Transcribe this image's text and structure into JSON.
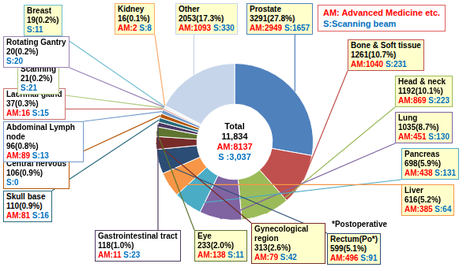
{
  "chart_data": {
    "type": "doughnut",
    "categories": [
      "Prostate",
      "Bone & Soft tissue",
      "Head & neck",
      "Lung",
      "Pancreas",
      "Liver",
      "Rectum(Po*)",
      "Gynecological region",
      "Eye",
      "Gastrointestinal tract",
      "Skull base",
      "Central nervous",
      "Abdominal Lymph node",
      "Lacrimal gland",
      "Scanning",
      "Rotating Gantry",
      "Breast",
      "Kidney",
      "Other"
    ],
    "values": [
      3291,
      1261,
      1192,
      1035,
      698,
      616,
      599,
      313,
      233,
      118,
      110,
      106,
      96,
      37,
      21,
      20,
      19,
      16,
      2053
    ],
    "value_labels": [
      "3291(27.8%)",
      "1261(10.7%)",
      "1192(10.1%)",
      "1035(8.7%)",
      "698(5.9%)",
      "616(5.2%)",
      "599(5.1%)",
      "313(2.6%)",
      "233(2.0%)",
      "118(1.0%)",
      "110(0.9%)",
      "106(0.9%)",
      "96(0.8%)",
      "37(0.3%)",
      "21(0.2%)",
      "20(0.2%)",
      "19(0.2%)",
      "16(0.1%)",
      "2053(17.3%)"
    ],
    "colors": [
      "#4f81bd",
      "#c0504d",
      "#9bbb59",
      "#8064a2",
      "#4bacc6",
      "#f79646",
      "#2c4d75",
      "#772c2a",
      "#5f7530",
      "#4d3b62",
      "#276a7c",
      "#b65708",
      "#729aca",
      "#cd7371",
      "#afc97a",
      "#9983b5",
      "#6fbdd1",
      "#f9ab6b",
      "#c6d5ea"
    ],
    "series": [
      {
        "name": "AM: Advanced Medicine etc.",
        "color": "#ff0000",
        "values": [
          2949,
          1040,
          869,
          451,
          438,
          385,
          496,
          79,
          138,
          11,
          81,
          null,
          89,
          16,
          null,
          null,
          null,
          2,
          1093
        ],
        "value_labels": [
          "AM:2949",
          "AM:1040",
          "AM:869",
          "AM:451",
          "AM:438",
          "AM:385",
          "AM:496",
          "AM:79",
          "AM:138",
          "AM:11",
          "AM:81",
          null,
          "AM:89",
          "AM:16",
          null,
          null,
          null,
          "AM:2",
          "AM:1093"
        ]
      },
      {
        "name": "S:Scanning beam",
        "color": "#0070c0",
        "values": [
          1657,
          231,
          223,
          130,
          131,
          64,
          91,
          42,
          11,
          23,
          16,
          0,
          13,
          15,
          21,
          20,
          11,
          8,
          330
        ],
        "value_labels": [
          "S:1657",
          "S:231",
          "S:223",
          "S:130",
          "S:131",
          "S:64",
          "S:91",
          "S:42",
          "S:11",
          "S:23",
          "S:16",
          "S:0",
          "S:13",
          "S:15",
          "S:21",
          "S:20",
          "S:11",
          "S:8",
          "S:330"
        ]
      }
    ],
    "center": {
      "title": "Total",
      "total": 11834,
      "total_label": "11,834",
      "am_total": 8137,
      "am_label": "AM:8137",
      "s_total": 3037,
      "s_label": "S :3,037"
    },
    "annotations": [
      "*Postoperative"
    ],
    "legend": "top-right",
    "data_labels": true
  }
}
